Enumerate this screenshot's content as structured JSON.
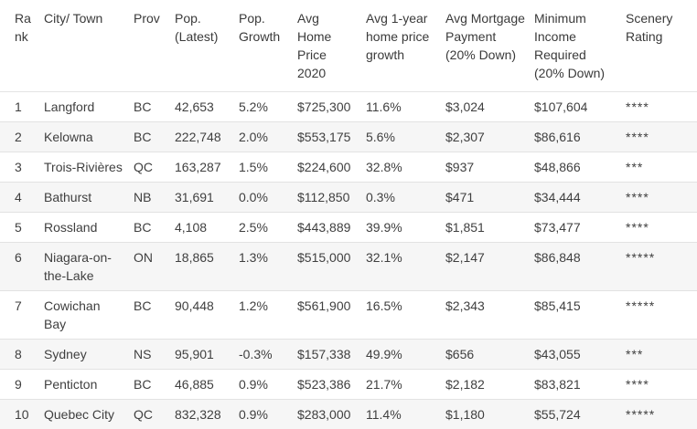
{
  "table": {
    "name": "best-places-scenery-ranking",
    "columns": [
      "Rank",
      "City/ Town",
      "Prov",
      "Pop. (Latest)",
      "Pop. Growth",
      "Avg Home Price 2020",
      "Avg 1-year home price growth",
      "Avg Mortgage Payment (20% Down)",
      "Minimum Income Required (20% Down)",
      "Scenery Rating"
    ],
    "column_keys": [
      "rank",
      "city-town",
      "prov",
      "pop-latest",
      "pop-growth",
      "avg-home-price-2020",
      "avg-1-year-home-price-growth",
      "avg-mortgage-payment-20-down",
      "minimum-income-required-20-down",
      "scenery-rating"
    ],
    "rows": [
      [
        "1",
        "Langford",
        "BC",
        "42,653",
        "5.2%",
        "$725,300",
        "11.6%",
        "$3,024",
        "$107,604",
        "****"
      ],
      [
        "2",
        "Kelowna",
        "BC",
        "222,748",
        "2.0%",
        "$553,175",
        "5.6%",
        "$2,307",
        "$86,616",
        "****"
      ],
      [
        "3",
        "Trois-Rivières",
        "QC",
        "163,287",
        "1.5%",
        "$224,600",
        "32.8%",
        "$937",
        "$48,866",
        "***"
      ],
      [
        "4",
        "Bathurst",
        "NB",
        "31,691",
        "0.0%",
        "$112,850",
        "0.3%",
        "$471",
        "$34,444",
        "****"
      ],
      [
        "5",
        "Rossland",
        "BC",
        "4,108",
        "2.5%",
        "$443,889",
        "39.9%",
        "$1,851",
        "$73,477",
        "****"
      ],
      [
        "6",
        "Niagara-on-the-Lake",
        "ON",
        "18,865",
        "1.3%",
        "$515,000",
        "32.1%",
        "$2,147",
        "$86,848",
        "*****"
      ],
      [
        "7",
        "Cowichan Bay",
        "BC",
        "90,448",
        "1.2%",
        "$561,900",
        "16.5%",
        "$2,343",
        "$85,415",
        "*****"
      ],
      [
        "8",
        "Sydney",
        "NS",
        "95,901",
        "-0.3%",
        "$157,338",
        "49.9%",
        "$656",
        "$43,055",
        "***"
      ],
      [
        "9",
        "Penticton",
        "BC",
        "46,885",
        "0.9%",
        "$523,386",
        "21.7%",
        "$2,182",
        "$83,821",
        "****"
      ],
      [
        "10",
        "Quebec City",
        "QC",
        "832,328",
        "0.9%",
        "$283,000",
        "11.4%",
        "$1,180",
        "$55,724",
        "*****"
      ]
    ]
  },
  "colors": {
    "text": "#3f3f3f",
    "row_stripe": "#f6f6f6",
    "border": "#e2e2e2",
    "background": "#ffffff"
  }
}
